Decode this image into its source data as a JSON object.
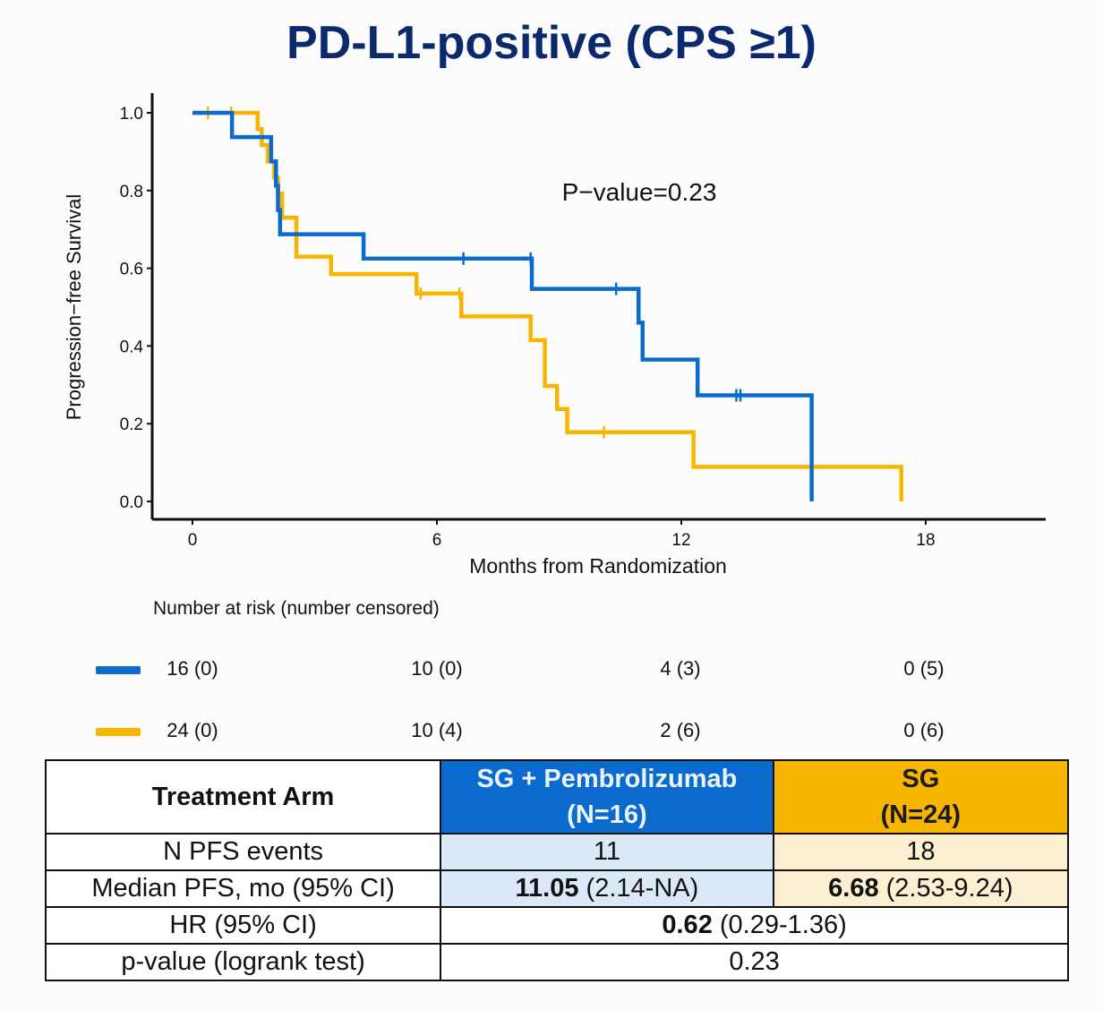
{
  "title": "PD-L1-positive (CPS ≥1)",
  "colors": {
    "blue": "#0a6bcc",
    "gold": "#f7b500",
    "title": "#0b2a6e"
  },
  "chart_data": {
    "type": "line",
    "subtype": "kaplan-meier step",
    "title": "PD-L1-positive (CPS ≥1)",
    "xlabel": "Months from Randomization",
    "ylabel": "Progression−free Survival",
    "xticks": [
      0,
      6,
      12,
      18
    ],
    "xtick_labels": [
      "0",
      "6",
      "12",
      "18"
    ],
    "yticks": [
      0.0,
      0.2,
      0.4,
      0.6,
      0.8,
      1.0
    ],
    "ytick_labels": [
      "0.0",
      "0.2",
      "0.4",
      "0.6",
      "0.8",
      "1.0"
    ],
    "xlim": [
      -1,
      21
    ],
    "ylim": [
      -0.05,
      1.05
    ],
    "grid": false,
    "annotation": "P−value=0.23",
    "series": [
      {
        "name": "SG + Pembrolizumab",
        "color": "#0a6bcc",
        "steps": [
          [
            0,
            1.0
          ],
          [
            0.97,
            0.9375
          ],
          [
            1.93,
            0.875
          ],
          [
            2.05,
            0.8125
          ],
          [
            2.1,
            0.75
          ],
          [
            2.15,
            0.6875
          ],
          [
            4.2,
            0.625
          ],
          [
            8.33,
            0.547
          ],
          [
            10.95,
            0.46
          ],
          [
            11.05,
            0.365
          ],
          [
            12.4,
            0.273
          ],
          [
            15.2,
            0.0
          ]
        ],
        "end": 15.2,
        "censored": [
          [
            6.65,
            0.625
          ],
          [
            8.3,
            0.625
          ],
          [
            10.4,
            0.547
          ],
          [
            13.35,
            0.273
          ],
          [
            13.45,
            0.273
          ]
        ]
      },
      {
        "name": "SG",
        "color": "#f7b500",
        "steps": [
          [
            0,
            1.0
          ],
          [
            1.6,
            0.958
          ],
          [
            1.7,
            0.917
          ],
          [
            1.85,
            0.875
          ],
          [
            2.0,
            0.833
          ],
          [
            2.1,
            0.792
          ],
          [
            2.2,
            0.73
          ],
          [
            2.55,
            0.63
          ],
          [
            3.4,
            0.585
          ],
          [
            5.5,
            0.535
          ],
          [
            6.6,
            0.476
          ],
          [
            8.3,
            0.415
          ],
          [
            8.65,
            0.297
          ],
          [
            8.95,
            0.238
          ],
          [
            9.2,
            0.178
          ],
          [
            12.3,
            0.089
          ],
          [
            17.4,
            0.0
          ]
        ],
        "end": 17.4,
        "censored": [
          [
            0.38,
            1.0
          ],
          [
            0.95,
            1.0
          ],
          [
            5.6,
            0.535
          ],
          [
            6.55,
            0.535
          ],
          [
            10.1,
            0.178
          ]
        ]
      }
    ]
  },
  "risk_table": {
    "heading": "Number at risk (number censored)",
    "timepoints": [
      0,
      6,
      12,
      18
    ],
    "rows": [
      {
        "arm": "SG + Pembrolizumab",
        "color": "#0a6bcc",
        "values": [
          "16 (0)",
          "10 (0)",
          "4 (3)",
          "0 (5)"
        ]
      },
      {
        "arm": "SG",
        "color": "#f7b500",
        "values": [
          "24 (0)",
          "10 (4)",
          "2 (6)",
          "0 (6)"
        ]
      }
    ]
  },
  "summary_table": {
    "header": {
      "label": "Treatment Arm",
      "arm1_line1": "SG + Pembrolizumab",
      "arm1_line2": "(N=16)",
      "arm2_line1": "SG",
      "arm2_line2": "(N=24)"
    },
    "rows": [
      {
        "label": "N PFS events",
        "arm1": "11",
        "arm2": "18"
      },
      {
        "label": "Median PFS, mo (95% CI)",
        "arm1_bold": "11.05",
        "arm1_rest": " (2.14-NA)",
        "arm2_bold": "6.68",
        "arm2_rest": " (2.53-9.24)"
      },
      {
        "label": "HR (95% CI)",
        "both_bold": "0.62",
        "both_rest": " (0.29-1.36)"
      },
      {
        "label": "p-value (logrank test)",
        "both": "0.23"
      }
    ]
  }
}
